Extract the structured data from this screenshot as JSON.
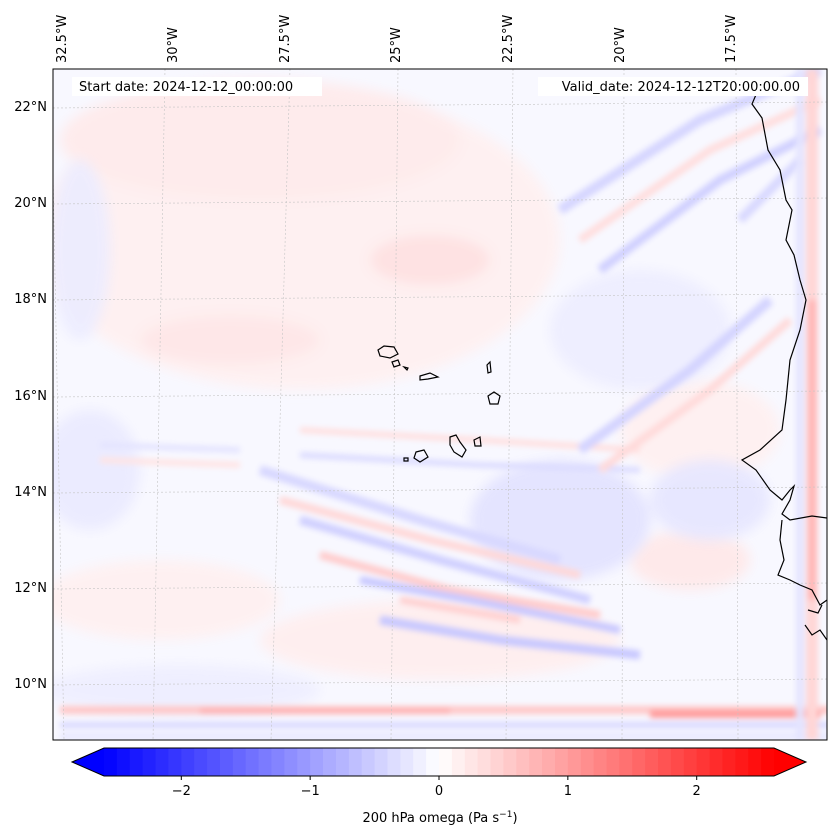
{
  "header": {
    "start_date": "Start date: 2024-12-12_00:00:00",
    "valid_date": "Valid_date: 2024-12-12T20:00:00.00"
  },
  "lon_labels": [
    {
      "text": "32.5°W",
      "lon": -32.5
    },
    {
      "text": "30°W",
      "lon": -30
    },
    {
      "text": "27.5°W",
      "lon": -27.5
    },
    {
      "text": "25°W",
      "lon": -25
    },
    {
      "text": "22.5°W",
      "lon": -22.5
    },
    {
      "text": "20°W",
      "lon": -20
    },
    {
      "text": "17.5°W",
      "lon": -17.5
    }
  ],
  "lat_labels": [
    {
      "text": "22°N",
      "lat": 22
    },
    {
      "text": "20°N",
      "lat": 20
    },
    {
      "text": "18°N",
      "lat": 18
    },
    {
      "text": "16°N",
      "lat": 16
    },
    {
      "text": "14°N",
      "lat": 14
    },
    {
      "text": "12°N",
      "lat": 12
    },
    {
      "text": "10°N",
      "lat": 10
    }
  ],
  "colorbar": {
    "label_main": "200 hPa omega (Pa s",
    "label_exp": "−1",
    "label_end": ")",
    "min": -2.6,
    "max": 2.6,
    "ticks": [
      {
        "value": -2,
        "text": "−2"
      },
      {
        "value": -1,
        "text": "−1"
      },
      {
        "value": 0,
        "text": "0"
      },
      {
        "value": 1,
        "text": "1"
      },
      {
        "value": 2,
        "text": "2"
      }
    ],
    "colormap": "bwr",
    "color_low": "#0000ff",
    "color_mid": "#ffffff",
    "color_high": "#ff0000"
  },
  "map": {
    "field": "200 hPa omega",
    "lon_range": [
      -33,
      -15.5
    ],
    "lat_range": [
      9,
      22.8
    ],
    "coastline_color": "#000000",
    "gridline_color": "#bbbbbb"
  }
}
